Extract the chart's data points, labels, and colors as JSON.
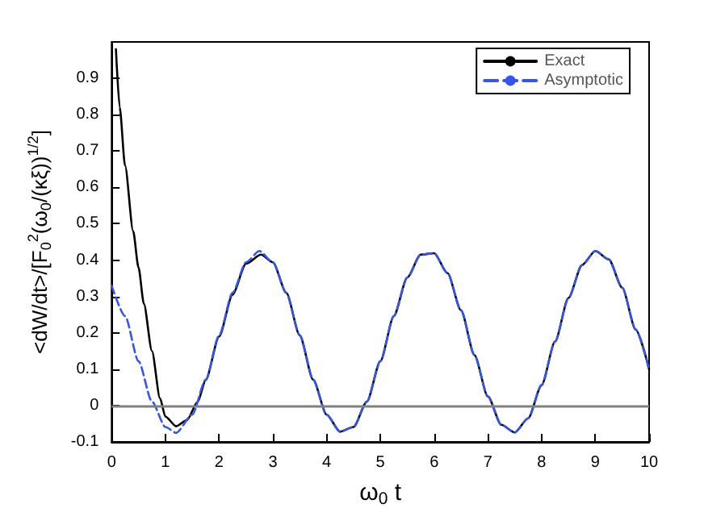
{
  "chart_data": {
    "type": "line",
    "xlabel": "ω$_{0}$ t",
    "ylabel": "<dW/dt>/[F$_{0}$$^{2}$(ω$_{0}$/(κξ))$^{1/2}$]",
    "xlim": [
      0,
      10
    ],
    "xticks": [
      0,
      1,
      2,
      3,
      4,
      5,
      6,
      7,
      8,
      9,
      10
    ],
    "ylim": [
      -0.1,
      1
    ],
    "yticks": [
      -0.1,
      0,
      0.1,
      0.2,
      0.3,
      0.4,
      0.5,
      0.6,
      0.7,
      0.8,
      0.9
    ],
    "grid": false,
    "legend": "top right",
    "marker": "none",
    "ref_lines": [
      {
        "axis": "y",
        "value": 0,
        "color": "#808080"
      }
    ],
    "series": [
      {
        "name": "Exact",
        "color": "#000000",
        "line_style": "solid",
        "x": [
          0.08,
          0.15,
          0.25,
          0.4,
          0.5,
          0.6,
          0.75,
          0.9,
          1.0,
          1.2,
          1.4,
          1.6,
          1.75,
          2.0,
          2.25,
          2.5,
          2.78,
          3.0,
          3.25,
          3.5,
          3.75,
          4.0,
          4.25,
          4.5,
          4.75,
          5.0,
          5.25,
          5.5,
          5.75,
          6.0,
          6.25,
          6.5,
          6.75,
          7.0,
          7.25,
          7.5,
          7.75,
          8.0,
          8.25,
          8.5,
          8.75,
          9.0,
          9.25,
          9.5,
          9.75,
          10
        ],
        "values": [
          0.98,
          0.82,
          0.66,
          0.48,
          0.38,
          0.28,
          0.15,
          0.02,
          -0.03,
          -0.057,
          -0.04,
          0.01,
          0.07,
          0.19,
          0.305,
          0.39,
          0.415,
          0.394,
          0.31,
          0.193,
          0.071,
          -0.025,
          -0.072,
          -0.059,
          0.011,
          0.122,
          0.246,
          0.352,
          0.415,
          0.419,
          0.364,
          0.262,
          0.139,
          0.025,
          -0.053,
          -0.074,
          -0.035,
          0.056,
          0.176,
          0.296,
          0.386,
          0.425,
          0.402,
          0.324,
          0.209,
          0.1
        ]
      },
      {
        "name": "Asymptotic",
        "color": "#3355ee",
        "line_style": "dashed",
        "x": [
          0,
          0.25,
          0.5,
          0.75,
          1.0,
          1.2,
          1.5,
          1.75,
          2.0,
          2.25,
          2.5,
          2.75,
          3.0,
          3.25,
          3.5,
          3.75,
          4.0,
          4.25,
          4.5,
          4.75,
          5.0,
          5.25,
          5.5,
          5.75,
          6.0,
          6.25,
          6.5,
          6.75,
          7.0,
          7.25,
          7.5,
          7.75,
          8.0,
          8.25,
          8.5,
          8.75,
          9.0,
          9.25,
          9.5,
          9.75,
          10
        ],
        "values": [
          0.33,
          0.246,
          0.122,
          0.011,
          -0.059,
          -0.075,
          -0.025,
          0.071,
          0.193,
          0.31,
          0.394,
          0.425,
          0.394,
          0.31,
          0.193,
          0.071,
          -0.025,
          -0.072,
          -0.059,
          0.011,
          0.122,
          0.246,
          0.352,
          0.415,
          0.419,
          0.364,
          0.262,
          0.139,
          0.025,
          -0.053,
          -0.074,
          -0.035,
          0.056,
          0.176,
          0.296,
          0.386,
          0.425,
          0.402,
          0.324,
          0.209,
          0.1
        ]
      }
    ]
  }
}
